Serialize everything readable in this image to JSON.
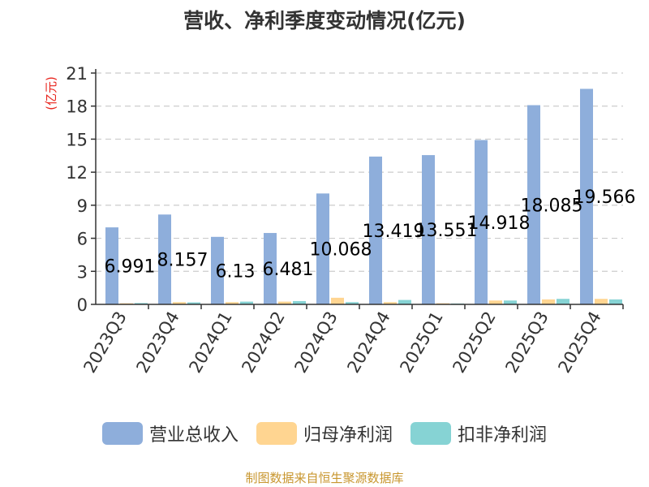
{
  "title": "营收、净利季度变动情况(亿元)",
  "source": "制图数据来自恒生聚源数据库",
  "colors": {
    "revenue": "#8eaedb",
    "net_profit_parent": "#ffd591",
    "net_profit_deducted": "#86d3d4",
    "axis_unit": "#e8231b",
    "grid": "#cccccc",
    "text": "#333333"
  },
  "chart_data": {
    "type": "bar",
    "title": "营收、净利季度变动情况(亿元)",
    "ylabel": "(亿元)",
    "ylim": [
      0,
      21
    ],
    "yticks": [
      0,
      3,
      6,
      9,
      12,
      15,
      18,
      21
    ],
    "grid": true,
    "legend_position": "bottom",
    "categories": [
      "2023Q3",
      "2023Q4",
      "2024Q1",
      "2024Q2",
      "2024Q3",
      "2024Q4",
      "2025Q1",
      "2025Q2",
      "2025Q3",
      "2025Q4"
    ],
    "series": [
      {
        "name": "营业总收入",
        "values": [
          6.991,
          8.157,
          6.13,
          6.481,
          10.068,
          13.419,
          13.551,
          14.918,
          18.085,
          19.566
        ],
        "labels": [
          "6.991",
          "8.157",
          "6.13",
          "6.481",
          "10.068",
          "13.419",
          "13.551",
          "14.918",
          "18.085",
          "19.566"
        ]
      },
      {
        "name": "归母净利润",
        "values": [
          0.1,
          0.2,
          0.2,
          0.25,
          0.6,
          0.2,
          0.1,
          0.35,
          0.45,
          0.5
        ]
      },
      {
        "name": "扣非净利润",
        "values": [
          0.12,
          0.18,
          0.25,
          0.3,
          0.2,
          0.4,
          0.08,
          0.35,
          0.5,
          0.45
        ]
      }
    ]
  }
}
